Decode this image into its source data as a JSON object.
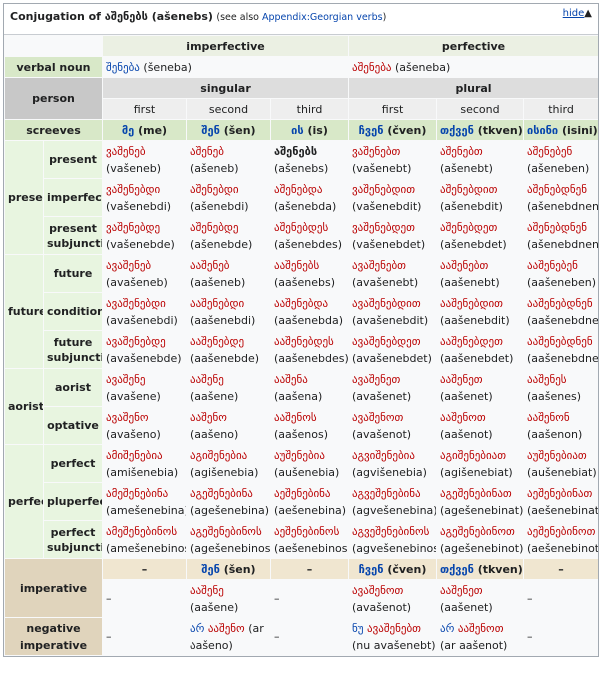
{
  "header": {
    "prefix": "Conjugation of ",
    "word": "აშენებს",
    "translit": " (ašenebs)",
    "see_also": "(see also ",
    "see_also_link": "Appendix:Georgian verbs",
    "see_also_end": ")",
    "hide": "hide",
    "hide_icon": "▲"
  },
  "aspect": {
    "imperfective": "imperfective",
    "perfective": "perfective"
  },
  "verbal_noun": {
    "label": "verbal noun",
    "imperfective": {
      "ka": "შენება",
      "lat": "(šeneba)"
    },
    "perfective": {
      "ka": "აშენება",
      "lat": "(ašeneba)"
    }
  },
  "person": {
    "label": "person",
    "singular": "singular",
    "plural": "plural",
    "first": "first",
    "second": "second",
    "third": "third"
  },
  "screeves": {
    "label": "screeves",
    "cells": [
      {
        "ka": "მე",
        "lat": "(me)"
      },
      {
        "ka": "შენ",
        "lat": "(šen)"
      },
      {
        "ka": "ის",
        "lat": "(is)"
      },
      {
        "ka": "ჩვენ",
        "lat": "(čven)"
      },
      {
        "ka": "თქვენ",
        "lat": "(tkven)"
      },
      {
        "ka": "ისინი",
        "lat": "(isini)"
      }
    ]
  },
  "groups": [
    {
      "name": "present",
      "rows": [
        {
          "name": "present",
          "cells": [
            [
              "ვაშენებ",
              "(vašeneb)"
            ],
            [
              "აშენებ",
              "(ašeneb)"
            ],
            [
              "აშენებს",
              "(ašenebs)"
            ],
            [
              "ვაშენებთ",
              "(vašenebt)"
            ],
            [
              "აშენებთ",
              "(ašenebt)"
            ],
            [
              "აშენებენ",
              "(ašeneben)"
            ]
          ]
        },
        {
          "name": "imperfect",
          "cells": [
            [
              "ვაშენებდი",
              "(vašenebdi)"
            ],
            [
              "აშენებდი",
              "(ašenebdi)"
            ],
            [
              "აშენებდა",
              "(ašenebda)"
            ],
            [
              "ვაშენებდით",
              "(vašenebdit)"
            ],
            [
              "აშენებდით",
              "(ašenebdit)"
            ],
            [
              "აშენებდნენ",
              "(ašenebdnen)"
            ]
          ]
        },
        {
          "name": "present subjunctive",
          "cells": [
            [
              "ვაშენებდე",
              "(vašenebde)"
            ],
            [
              "აშენებდე",
              "(ašenebde)"
            ],
            [
              "აშენებდეს",
              "(ašenebdes)"
            ],
            [
              "ვაშენებდეთ",
              "(vašenebdet)"
            ],
            [
              "აშენებდეთ",
              "(ašenebdet)"
            ],
            [
              "აშენებდნენ",
              "(ašenebdnen)"
            ]
          ]
        }
      ]
    },
    {
      "name": "future",
      "rows": [
        {
          "name": "future",
          "cells": [
            [
              "ავაშენებ",
              "(avašeneb)"
            ],
            [
              "ააშენებ",
              "(aašeneb)"
            ],
            [
              "ააშენებს",
              "(aašenebs)"
            ],
            [
              "ავაშენებთ",
              "(avašenebt)"
            ],
            [
              "ააშენებთ",
              "(aašenebt)"
            ],
            [
              "ააშენებენ",
              "(aašeneben)"
            ]
          ]
        },
        {
          "name": "conditional",
          "cells": [
            [
              "ავაშენებდი",
              "(avašenebdi)"
            ],
            [
              "ააშენებდი",
              "(aašenebdi)"
            ],
            [
              "ააშენებდა",
              "(aašenebda)"
            ],
            [
              "ავაშენებდით",
              "(avašenebdit)"
            ],
            [
              "ააშენებდით",
              "(aašenebdit)"
            ],
            [
              "ააშენებდნენ",
              "(aašenebdnen)"
            ]
          ]
        },
        {
          "name": "future subjunctive",
          "cells": [
            [
              "ავაშენებდე",
              "(avašenebde)"
            ],
            [
              "ააშენებდე",
              "(aašenebde)"
            ],
            [
              "ააშენებდეს",
              "(aašenebdes)"
            ],
            [
              "ავაშენებდეთ",
              "(avašenebdet)"
            ],
            [
              "ააშენებდეთ",
              "(aašenebdet)"
            ],
            [
              "ააშენებდნენ",
              "(aašenebdnen)"
            ]
          ]
        }
      ]
    },
    {
      "name": "aorist",
      "rows": [
        {
          "name": "aorist",
          "cells": [
            [
              "ავაშენე",
              "(avašene)"
            ],
            [
              "ააშენე",
              "(aašene)"
            ],
            [
              "ააშენა",
              "(aašena)"
            ],
            [
              "ავაშენეთ",
              "(avašenet)"
            ],
            [
              "ააშენეთ",
              "(aašenet)"
            ],
            [
              "ააშენეს",
              "(aašenes)"
            ]
          ]
        },
        {
          "name": "optative",
          "cells": [
            [
              "ავაშენო",
              "(avašeno)"
            ],
            [
              "ააშენო",
              "(aašeno)"
            ],
            [
              "ააშენოს",
              "(aašenos)"
            ],
            [
              "ავაშენოთ",
              "(avašenot)"
            ],
            [
              "ააშენოთ",
              "(aašenot)"
            ],
            [
              "ააშენონ",
              "(aašenon)"
            ]
          ]
        }
      ]
    },
    {
      "name": "perfect",
      "rows": [
        {
          "name": "perfect",
          "cells": [
            [
              "ამიშენებია",
              "(amišenebia)"
            ],
            [
              "აგიშენებია",
              "(agišenebia)"
            ],
            [
              "აუშენებია",
              "(aušenebia)"
            ],
            [
              "აგვიშენებია",
              "(agvišenebia)"
            ],
            [
              "აგიშენებიათ",
              "(agišenebiat)"
            ],
            [
              "აუშენებიათ",
              "(aušenebiat)"
            ]
          ]
        },
        {
          "name": "pluperfect",
          "cells": [
            [
              "ამეშენებინა",
              "(amešenebina)"
            ],
            [
              "აგეშენებინა",
              "(agešenebina)"
            ],
            [
              "აეშენებინა",
              "(aešenebina)"
            ],
            [
              "აგვეშენებინა",
              "(agvešenebina)"
            ],
            [
              "აგეშენებინათ",
              "(agešenebinat)"
            ],
            [
              "აეშენებინათ",
              "(aešenebinat)"
            ]
          ]
        },
        {
          "name": "perfect subjunctive",
          "cells": [
            [
              "ამეშენებინოს",
              "(amešenebinos)"
            ],
            [
              "აგეშენებინოს",
              "(agešenebinos)"
            ],
            [
              "აეშენებინოს",
              "(aešenebinos)"
            ],
            [
              "აგვეშენებინოს",
              "(agvešenebinos)"
            ],
            [
              "აგეშენებინოთ",
              "(agešenebinot)"
            ],
            [
              "აეშენებინოთ",
              "(aešenebinot)"
            ]
          ]
        }
      ]
    }
  ],
  "imperative": {
    "label": "imperative",
    "heads": [
      "–",
      "შენ",
      "(šen)",
      "–",
      "ჩვენ",
      "(čven)",
      "თქვენ",
      "(tkven)",
      "–"
    ],
    "cells": [
      "–",
      "ააშენე",
      "(aašene)",
      "–",
      "ავაშენოთ",
      "(avašenot)",
      "ააშენეთ",
      "(aašenet)",
      "–"
    ]
  },
  "negative_imperative": {
    "label": "negative imperative",
    "cells": [
      "–",
      "არ",
      "ააშენო",
      "(ar",
      "აašeno)",
      "–",
      "ნუ",
      "ავაშენებთ",
      "(nu avašenebt)",
      "არ",
      "ააშენოთ",
      "(ar aašenot)",
      "–"
    ]
  }
}
